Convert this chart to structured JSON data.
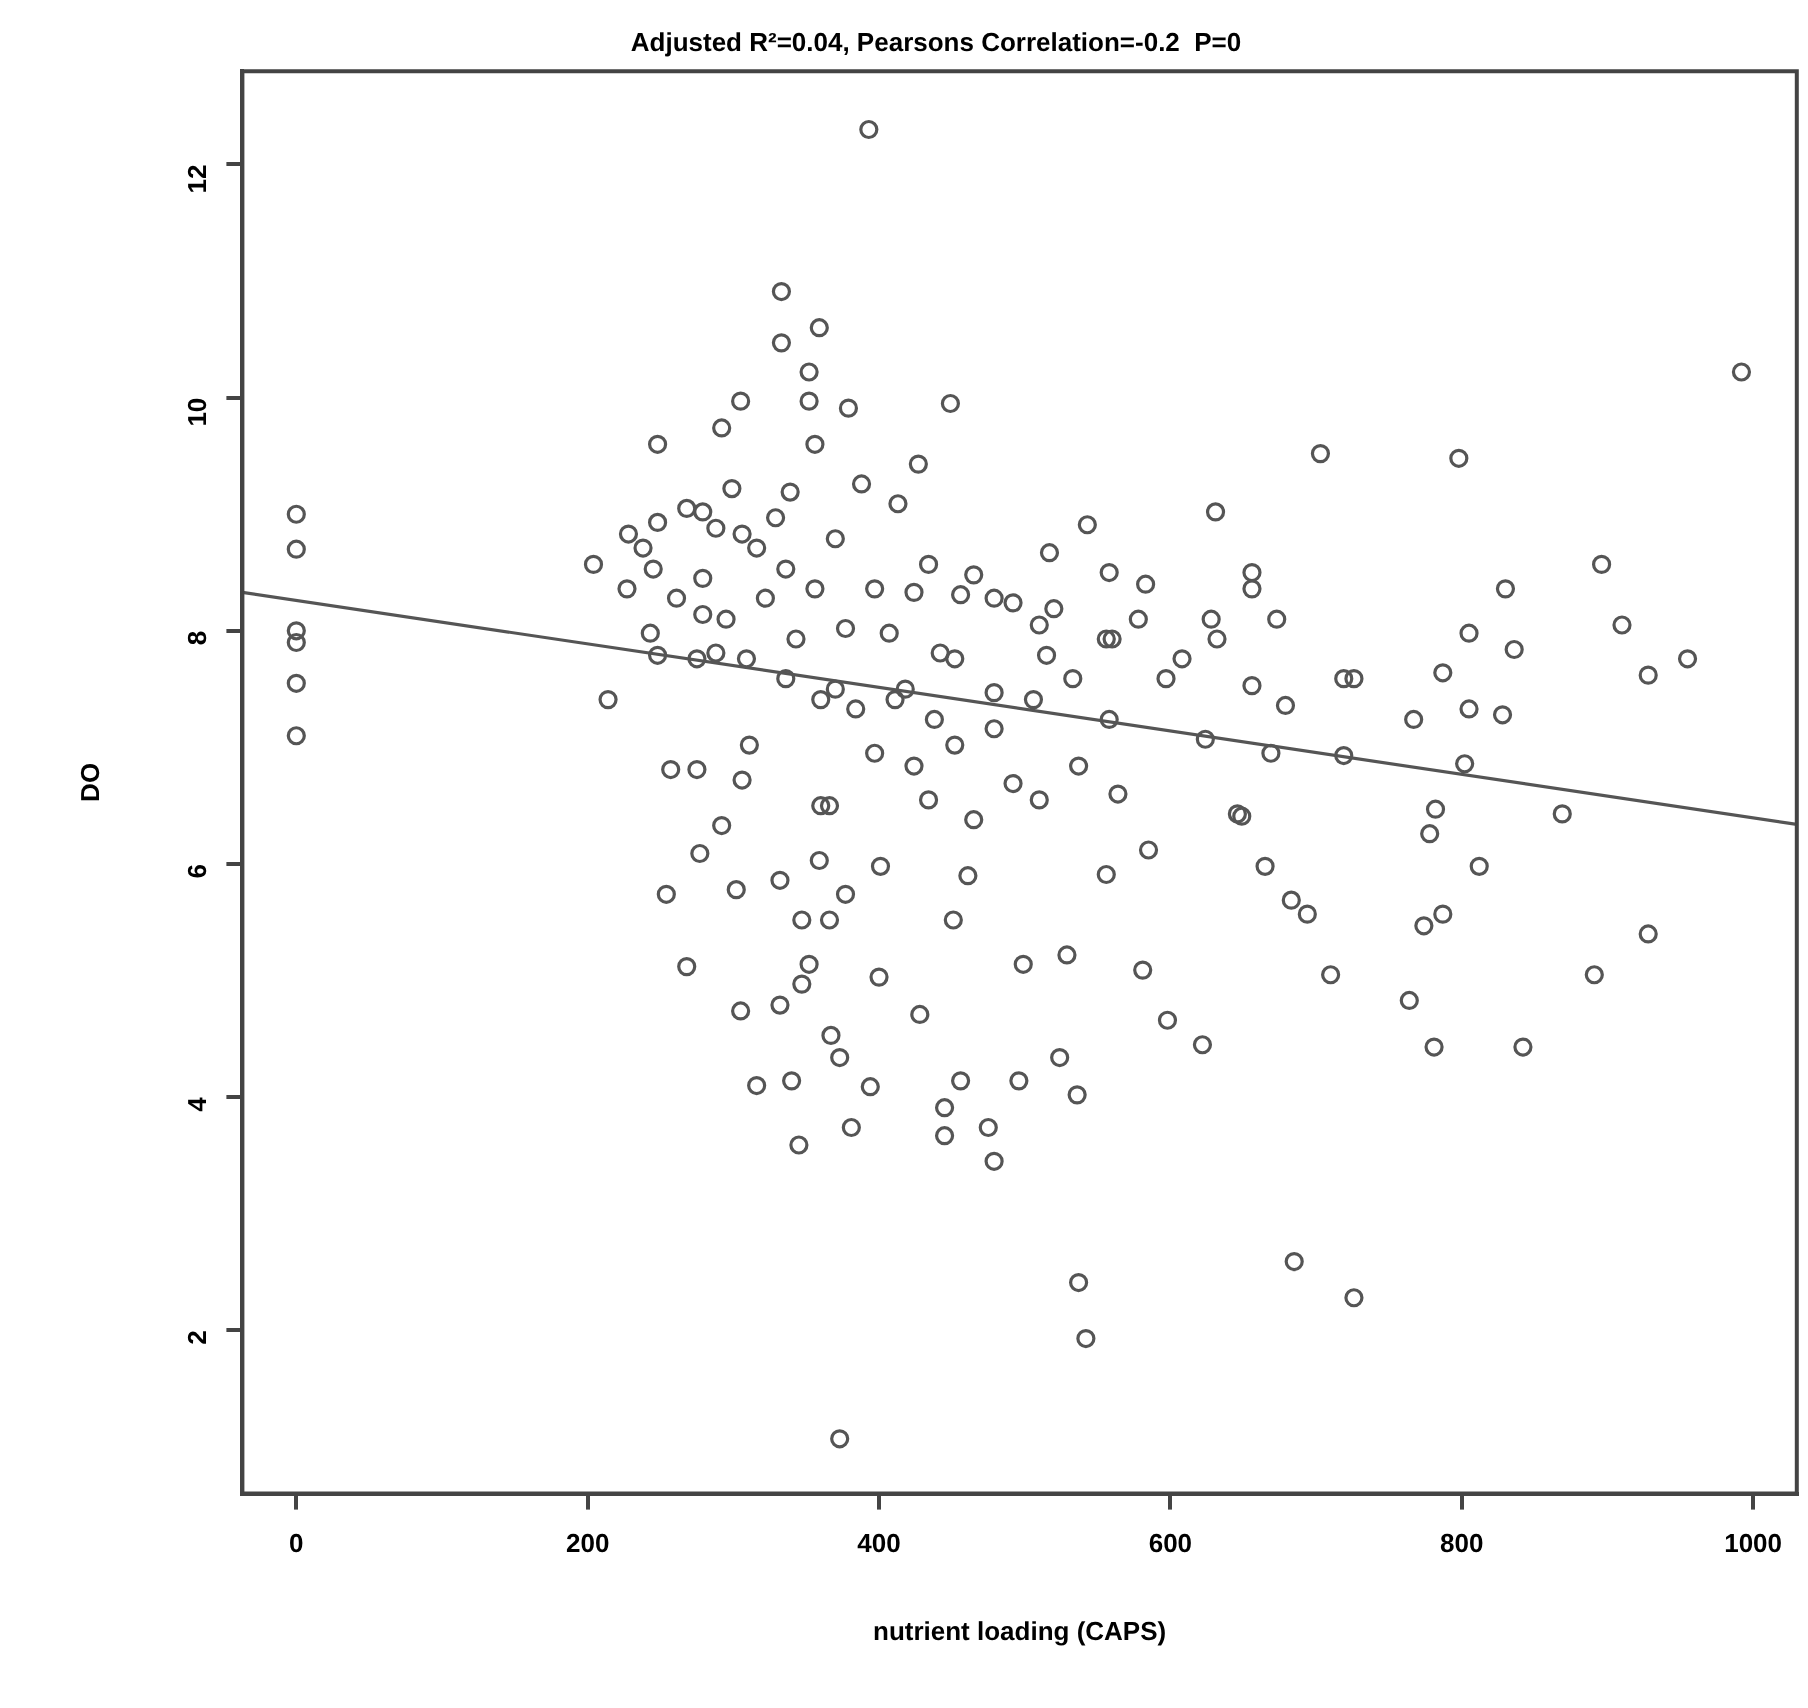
{
  "chart_data": {
    "type": "scatter",
    "title": "Adjusted R²=0.04, Pearsons Correlation=-0.2  P=0",
    "xlabel": "nutrient loading (CAPS)",
    "ylabel": "DO",
    "xlim": [
      -37,
      1030
    ],
    "xticks": [
      0,
      200,
      400,
      600,
      800,
      1000
    ],
    "ylim": [
      0.6,
      12.8
    ],
    "yticks": [
      2,
      4,
      6,
      8,
      10,
      12
    ],
    "grid": false,
    "legend": false,
    "marker": "circle",
    "series": [
      {
        "color": "#555555",
        "x": [
          0,
          0,
          0,
          0,
          0,
          0,
          393,
          333,
          359,
          333,
          352,
          352,
          305,
          292,
          248,
          356,
          279,
          306,
          339,
          204,
          245,
          279,
          279,
          243,
          248,
          288,
          214,
          275,
          257,
          311,
          306,
          360,
          292,
          449,
          427,
          379,
          631,
          703,
          543,
          388,
          413,
          517,
          558,
          465,
          434,
          583,
          656,
          673,
          578,
          632,
          510,
          492,
          424,
          456,
          407,
          442,
          515,
          556,
          597,
          656,
          719,
          679,
          411,
          479,
          533,
          558,
          624,
          669,
          719,
          397,
          424,
          452,
          492,
          537,
          564,
          510,
          366,
          434,
          465,
          646,
          360,
          992,
          798,
          896,
          830,
          910,
          805,
          836,
          955,
          928,
          787,
          828,
          805,
          767,
          726,
          802,
          869,
          782,
          778,
          812,
          277,
          254,
          302,
          332,
          347,
          366,
          359,
          401,
          377,
          461,
          451,
          499,
          529,
          268,
          352,
          347,
          400,
          305,
          332,
          428,
          367,
          373,
          316,
          340,
          394,
          456,
          496,
          524,
          536,
          445,
          445,
          475,
          479,
          345,
          381,
          537,
          542,
          373,
          649,
          556,
          585,
          665,
          683,
          694,
          581,
          598,
          622,
          710,
          774,
          787,
          764,
          891,
          928,
          781,
          842,
          685,
          726,
          228,
          248,
          268,
          288,
          316,
          336,
          370,
          397,
          227,
          261,
          295,
          322,
          343,
          370,
          384,
          336,
          309,
          275,
          238,
          356,
          329,
          299,
          377,
          418,
          438,
          479,
          506,
          452,
          479,
          520,
          560,
          608,
          628,
          656
        ],
        "values": [
          9.0,
          8.7,
          8.0,
          7.9,
          7.55,
          7.1,
          12.3,
          10.91,
          10.6,
          10.47,
          10.22,
          9.97,
          9.97,
          9.74,
          9.6,
          9.6,
          9.02,
          8.83,
          9.19,
          8.57,
          8.53,
          8.45,
          8.14,
          7.98,
          7.79,
          7.81,
          7.41,
          6.81,
          6.81,
          7.02,
          6.72,
          6.5,
          6.33,
          9.95,
          9.43,
          9.91,
          9.02,
          9.52,
          8.91,
          9.26,
          9.09,
          8.67,
          8.5,
          8.48,
          8.57,
          8.4,
          8.5,
          8.1,
          8.1,
          7.93,
          8.05,
          8.24,
          8.33,
          8.31,
          7.98,
          7.81,
          7.79,
          7.93,
          7.59,
          7.53,
          7.59,
          7.36,
          7.41,
          7.47,
          7.59,
          7.24,
          7.07,
          6.95,
          6.93,
          6.95,
          6.84,
          7.02,
          6.69,
          6.84,
          6.6,
          6.55,
          6.5,
          6.55,
          6.38,
          6.43,
          7.41,
          10.22,
          9.48,
          8.57,
          8.36,
          8.05,
          7.98,
          7.84,
          7.76,
          7.62,
          7.64,
          7.28,
          7.33,
          7.24,
          7.59,
          6.86,
          6.43,
          6.47,
          6.26,
          5.98,
          6.09,
          5.74,
          5.78,
          5.86,
          5.52,
          5.52,
          6.03,
          5.98,
          5.74,
          5.9,
          5.52,
          5.14,
          5.22,
          5.12,
          5.14,
          4.97,
          5.03,
          4.74,
          4.79,
          4.71,
          4.53,
          4.34,
          4.1,
          4.14,
          4.09,
          4.14,
          4.14,
          4.34,
          4.02,
          3.91,
          3.67,
          3.74,
          3.45,
          3.59,
          3.74,
          2.41,
          1.93,
          1.07,
          6.41,
          5.91,
          6.12,
          5.98,
          5.69,
          5.57,
          5.09,
          4.66,
          4.45,
          5.05,
          5.47,
          5.57,
          4.83,
          5.05,
          5.4,
          4.43,
          4.43,
          2.59,
          2.28,
          8.83,
          8.93,
          9.05,
          8.88,
          8.71,
          8.53,
          8.79,
          8.36,
          8.36,
          8.28,
          8.1,
          8.28,
          7.93,
          7.5,
          7.33,
          7.59,
          7.76,
          7.76,
          8.71,
          8.36,
          8.97,
          9.22,
          8.02,
          7.5,
          7.24,
          7.16,
          7.41,
          7.76,
          8.28,
          8.19,
          7.93,
          7.76,
          8.1,
          8.36
        ]
      },
      {
        "type": "line",
        "color": "#555555",
        "marker": "none",
        "x": [
          -37,
          1030
        ],
        "values": [
          8.33,
          6.34
        ]
      }
    ]
  }
}
